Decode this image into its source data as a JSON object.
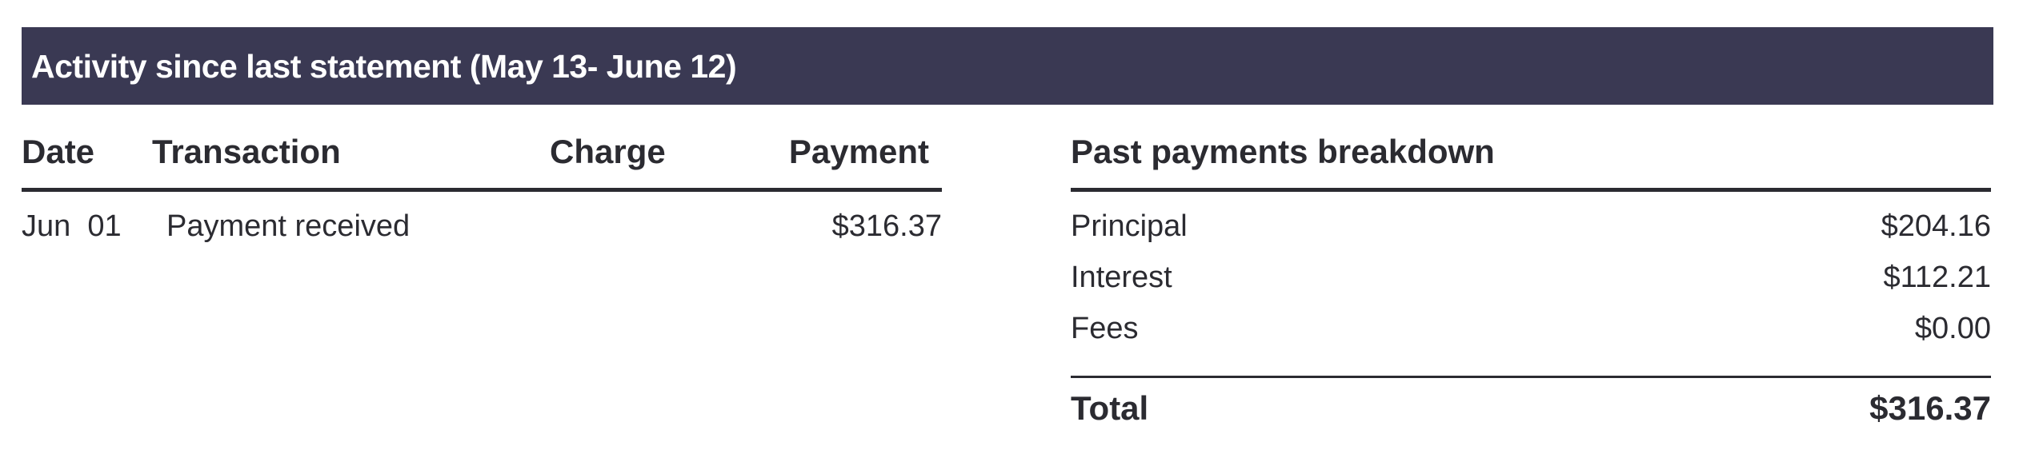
{
  "header": {
    "title": "Activity since last statement (May 13- June 12)"
  },
  "activity": {
    "columns": {
      "date": "Date",
      "transaction": "Transaction",
      "charge": "Charge",
      "payment": "Payment"
    },
    "rows": [
      {
        "date": "Jun  01",
        "transaction": "Payment received",
        "charge": "",
        "payment": "$316.37"
      }
    ]
  },
  "breakdown": {
    "title": "Past payments breakdown",
    "items": [
      {
        "label": "Principal",
        "value": "$204.16"
      },
      {
        "label": "Interest",
        "value": "$112.21"
      },
      {
        "label": "Fees",
        "value": "$0.00"
      }
    ],
    "total": {
      "label": "Total",
      "value": "$316.37"
    }
  },
  "colors": {
    "header_bg": "#3a3953",
    "text": "#2b2b31"
  }
}
